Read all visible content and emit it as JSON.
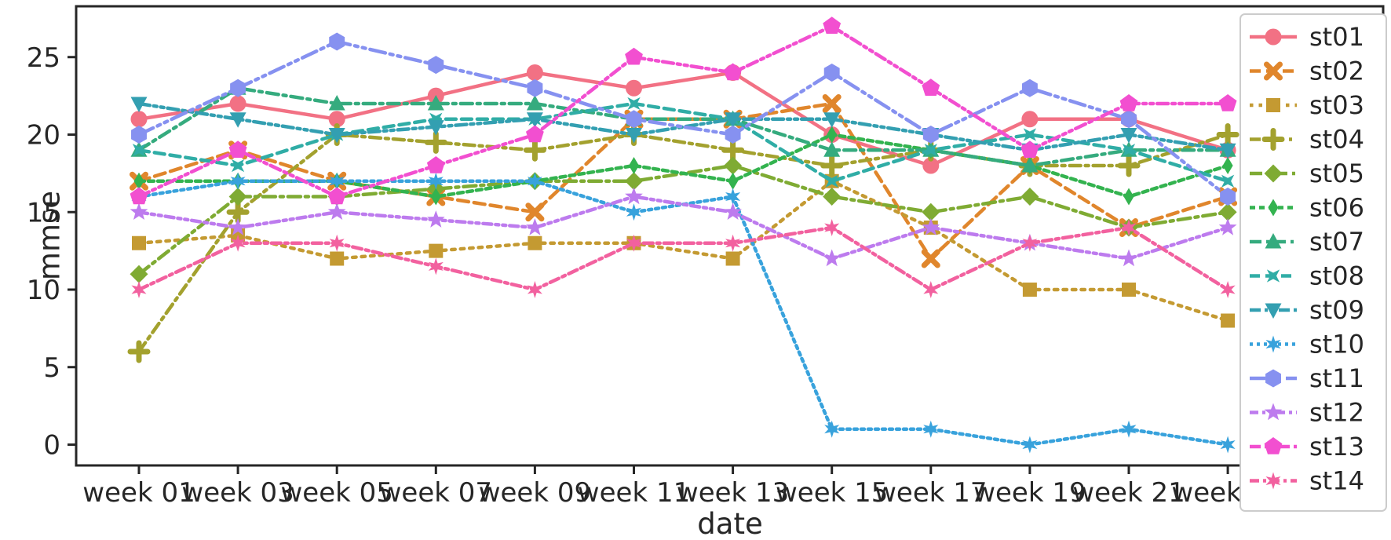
{
  "chart_data": {
    "type": "line",
    "title": "",
    "xlabel": "date",
    "ylabel": "mmse",
    "x_tick_labels": [
      "week 01",
      "week 03",
      "week 05",
      "week 07",
      "week 09",
      "week 11",
      "week 13",
      "week 15",
      "week 17",
      "week 19",
      "week 21",
      "week 23"
    ],
    "yticks": [
      0,
      5,
      10,
      15,
      20,
      25
    ],
    "ylim": [
      -1.35,
      28.2
    ],
    "grid": false,
    "legend_position": "upper right",
    "axis_color": "#262626",
    "legend_border_color": "#cccccc",
    "series": [
      {
        "name": "st01",
        "color": "#f27184",
        "marker": "circle",
        "dash": "",
        "values": [
          21,
          22,
          21,
          22.5,
          24,
          23,
          24,
          20,
          18,
          21,
          21,
          19
        ]
      },
      {
        "name": "st02",
        "color": "#e0862c",
        "marker": "x",
        "dash": "14 7",
        "values": [
          17,
          19,
          17,
          16,
          15,
          21,
          21,
          22,
          12,
          18,
          14,
          16
        ]
      },
      {
        "name": "st03",
        "color": "#c49a32",
        "marker": "square",
        "dash": "4.5 7",
        "values": [
          13,
          13.5,
          12,
          12.5,
          13,
          13,
          12,
          17,
          14,
          10,
          10,
          8
        ]
      },
      {
        "name": "st04",
        "color": "#a3a12e",
        "marker": "plus",
        "dash": "14 6 4 6",
        "values": [
          6,
          15,
          20,
          19.5,
          19,
          20,
          19,
          18,
          19,
          18,
          18,
          20
        ]
      },
      {
        "name": "st05",
        "color": "#7fab33",
        "marker": "diamond",
        "dash": "16 6 4 6",
        "values": [
          11,
          16,
          16,
          16.5,
          17,
          17,
          18,
          16,
          15,
          16,
          14,
          15
        ]
      },
      {
        "name": "st06",
        "color": "#33b34f",
        "marker": "thindiamond",
        "dash": "7 5",
        "values": [
          17,
          17,
          17,
          16,
          17,
          18,
          17,
          20,
          19,
          18,
          16,
          18
        ]
      },
      {
        "name": "st07",
        "color": "#35ab7e",
        "marker": "triup",
        "dash": "15 6 4 6",
        "values": [
          19,
          23,
          22,
          22,
          22,
          21,
          21,
          19,
          19,
          18,
          19,
          19
        ]
      },
      {
        "name": "st08",
        "color": "#30ada6",
        "marker": "star4",
        "dash": "13 7",
        "values": [
          19,
          18,
          20,
          21,
          21,
          22,
          21,
          17,
          19,
          20,
          19,
          17
        ]
      },
      {
        "name": "st09",
        "color": "#339fb1",
        "marker": "tridown",
        "dash": "14 5 4 5 4 5",
        "values": [
          22,
          21,
          20,
          20.5,
          21,
          20,
          21,
          21,
          20,
          19,
          20,
          19
        ]
      },
      {
        "name": "st10",
        "color": "#38a2dc",
        "marker": "star6",
        "dash": "4 5",
        "values": [
          16,
          17,
          17,
          17,
          17,
          15,
          16,
          1,
          1,
          0,
          1,
          0
        ]
      },
      {
        "name": "st11",
        "color": "#8691f0",
        "marker": "hexagon",
        "dash": "20 6 4 6 4 6",
        "values": [
          20,
          23,
          26,
          24.5,
          23,
          21,
          20,
          24,
          20,
          23,
          21,
          16
        ]
      },
      {
        "name": "st12",
        "color": "#bd7bee",
        "marker": "star5",
        "dash": "11 5 4 5 4 5",
        "values": [
          15,
          14,
          15,
          14.5,
          14,
          16,
          15,
          12,
          14,
          13,
          12,
          14
        ]
      },
      {
        "name": "st13",
        "color": "#f24fd0",
        "marker": "pentagon",
        "dash": "14 5 4 5 4 5",
        "values": [
          16,
          19,
          16,
          18,
          20,
          25,
          24,
          27,
          23,
          19,
          22,
          22
        ]
      },
      {
        "name": "st14",
        "color": "#f2619f",
        "marker": "star6",
        "dash": "12 5 4 5",
        "values": [
          10,
          13,
          13,
          11.5,
          10,
          13,
          13,
          14,
          10,
          13,
          14,
          10
        ]
      }
    ]
  }
}
